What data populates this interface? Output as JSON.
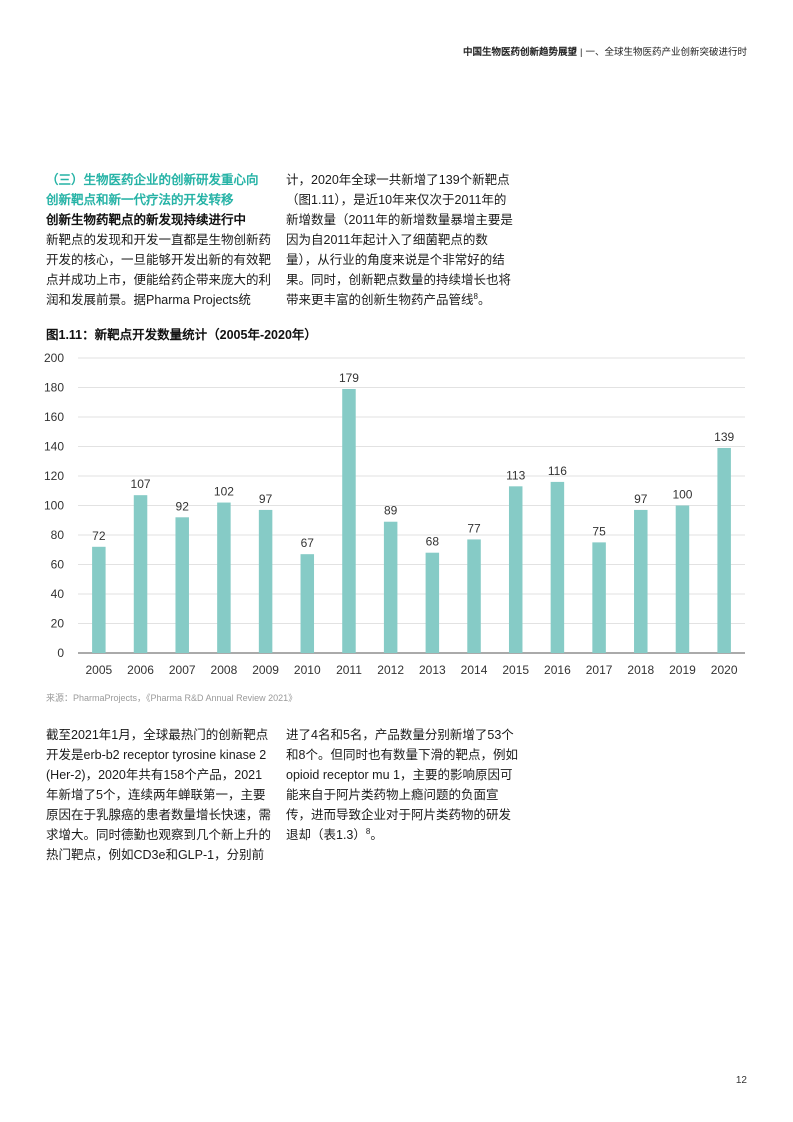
{
  "header": {
    "report_title": "中国生物医药创新趋势展望",
    "separator": "|",
    "chapter": "一、全球生物医药产业创新突破进行时"
  },
  "section": {
    "heading_line1": "（三）生物医药企业的创新研发重心向",
    "heading_line2": "创新靶点和新一代疗法的开发转移",
    "subheading": "创新生物药靶点的新发现持续进行中",
    "para1_left": "新靶点的发现和开发一直都是生物创新药开发的核心，一旦能够开发出新的有效靶点并成功上市，便能给药企带来庞大的利润和发展前景。据Pharma Projects统",
    "para1_right": "计，2020年全球一共新增了139个新靶点（图1.11），是近10年来仅次于2011年的新增数量（2011年的新增数量暴增主要是因为自2011年起计入了细菌靶点的数量），从行业的角度来说是个非常好的结果。同时，创新靶点数量的持续增长也将带来更丰富的创新生物药产品管线",
    "para1_right_ref": "8",
    "para1_right_end": "。"
  },
  "figure": {
    "title": "图1.11：新靶点开发数量统计（2005年-2020年）",
    "source": "来源：PharmaProjects，《Pharma R&D Annual Review 2021》"
  },
  "chart_data": {
    "type": "bar",
    "title": "图1.11：新靶点开发数量统计（2005年-2020年）",
    "categories": [
      "2005",
      "2006",
      "2007",
      "2008",
      "2009",
      "2010",
      "2011",
      "2012",
      "2013",
      "2014",
      "2015",
      "2016",
      "2017",
      "2018",
      "2019",
      "2020"
    ],
    "values": [
      72,
      107,
      92,
      102,
      97,
      67,
      179,
      89,
      68,
      77,
      113,
      116,
      75,
      97,
      100,
      139
    ],
    "yticks": [
      0,
      20,
      40,
      60,
      80,
      100,
      120,
      140,
      160,
      180,
      200
    ],
    "ylim": [
      0,
      200
    ],
    "xlabel": "",
    "ylabel": "",
    "grid": true,
    "bar_color": "#86cbc6",
    "grid_color": "#d9d9d9"
  },
  "bottom": {
    "para_left": "截至2021年1月，全球最热门的创新靶点开发是erb-b2 receptor tyrosine kinase 2 (Her-2)，2020年共有158个产品，2021年新增了5个，连续两年蝉联第一，主要原因在于乳腺癌的患者数量增长快速，需求增大。同时德勤也观察到几个新上升的热门靶点，例如CD3e和GLP-1，分别前",
    "para_right": "进了4名和5名，产品数量分别新增了53个和8个。但同时也有数量下滑的靶点，例如opioid receptor mu 1，主要的影响原因可能来自于阿片类药物上瘾问题的负面宣传，进而导致企业对于阿片类药物的研发退却（表1.3）",
    "para_right_ref": "8",
    "para_right_end": "。"
  },
  "page_number": "12"
}
